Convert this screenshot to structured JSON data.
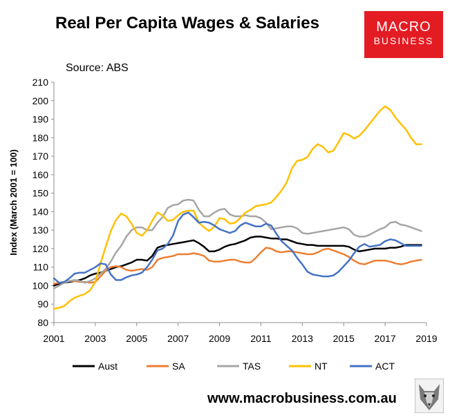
{
  "header": {
    "title": "Real Per Capita Wages & Salaries",
    "source": "Source: ABS",
    "logo_line1": "MACRO",
    "logo_line2": "BUSINESS",
    "logo_color": "#e31b23"
  },
  "footer": {
    "website": "www.macrobusiness.com.au",
    "mascot_icon": "wolf-icon"
  },
  "chart_data": {
    "type": "line",
    "title": "Real Per Capita Wages & Salaries",
    "xlabel": "",
    "ylabel": "Index (March 2001 = 100)",
    "xlim": [
      2001,
      2019
    ],
    "ylim": [
      80,
      210
    ],
    "xticks": [
      2001,
      2003,
      2005,
      2007,
      2009,
      2011,
      2013,
      2015,
      2017,
      2019
    ],
    "yticks": [
      80,
      90,
      100,
      110,
      120,
      130,
      140,
      150,
      160,
      170,
      180,
      190,
      200,
      210
    ],
    "grid": false,
    "legend_position": "bottom",
    "x": [
      2001.0,
      2001.25,
      2001.5,
      2001.75,
      2002.0,
      2002.25,
      2002.5,
      2002.75,
      2003.0,
      2003.25,
      2003.5,
      2003.75,
      2004.0,
      2004.25,
      2004.5,
      2004.75,
      2005.0,
      2005.25,
      2005.5,
      2005.75,
      2006.0,
      2006.25,
      2006.5,
      2006.75,
      2007.0,
      2007.25,
      2007.5,
      2007.75,
      2008.0,
      2008.25,
      2008.5,
      2008.75,
      2009.0,
      2009.25,
      2009.5,
      2009.75,
      2010.0,
      2010.25,
      2010.5,
      2010.75,
      2011.0,
      2011.25,
      2011.5,
      2011.75,
      2012.0,
      2012.25,
      2012.5,
      2012.75,
      2013.0,
      2013.25,
      2013.5,
      2013.75,
      2014.0,
      2014.25,
      2014.5,
      2014.75,
      2015.0,
      2015.25,
      2015.5,
      2015.75,
      2016.0,
      2016.25,
      2016.5,
      2016.75,
      2017.0,
      2017.25,
      2017.5,
      2017.75,
      2018.0,
      2018.25,
      2018.5,
      2018.75
    ],
    "series": [
      {
        "name": "Aust",
        "color": "#000000",
        "values": [
          100,
          101,
          101.5,
          102,
          102.5,
          103,
          104,
          105.5,
          106.5,
          107,
          108,
          109,
          110,
          110.5,
          111.5,
          112.5,
          114,
          114,
          113.5,
          116,
          120.5,
          121.5,
          122,
          122.5,
          123,
          123.5,
          124,
          124.5,
          123,
          121,
          118.5,
          118.5,
          119.5,
          121,
          122,
          122.5,
          123.5,
          124.5,
          126,
          126.5,
          126.5,
          126,
          125.5,
          125.5,
          125,
          125,
          124,
          123,
          122.5,
          122,
          122,
          121.5,
          121.5,
          121.5,
          121.5,
          121.5,
          121.5,
          121,
          119.5,
          118.5,
          119,
          119.5,
          120,
          120,
          120,
          120.5,
          120.5,
          121,
          122,
          122,
          122,
          122
        ]
      },
      {
        "name": "SA",
        "color": "#ed7d31",
        "values": [
          101,
          101.5,
          102,
          102.5,
          102.5,
          102,
          102,
          101.5,
          102,
          105,
          108,
          110,
          110.5,
          110,
          108.5,
          108,
          108.5,
          109,
          108.5,
          110,
          114,
          115,
          115.5,
          116,
          117,
          117,
          117,
          117.5,
          117,
          116,
          113.5,
          113,
          113,
          113.5,
          114,
          114,
          113,
          112.5,
          112.5,
          115,
          118,
          120.5,
          120,
          118.5,
          118,
          118.5,
          118.5,
          118,
          117.5,
          117,
          117,
          118,
          119.5,
          120,
          119,
          118,
          117,
          115.5,
          113.5,
          112,
          111.5,
          112.5,
          113.5,
          113.5,
          113.5,
          113,
          112,
          111.5,
          112,
          113,
          113.5,
          114
        ]
      },
      {
        "name": "TAS",
        "color": "#a5a5a5",
        "values": [
          98.5,
          100,
          101.5,
          102.5,
          103,
          102.5,
          101.5,
          102.5,
          104,
          106.5,
          109,
          113,
          118,
          121.5,
          126.5,
          130,
          131.5,
          131.5,
          130,
          130,
          134,
          137,
          142,
          143.5,
          144,
          146,
          146.5,
          146,
          141,
          137.5,
          137.5,
          139.5,
          141,
          141.5,
          138.5,
          137.5,
          137.5,
          138,
          137.5,
          137.5,
          136.5,
          134,
          130.5,
          131,
          131.5,
          132,
          132,
          131,
          128.5,
          128,
          128.5,
          129,
          129.5,
          130,
          130.5,
          131,
          131.5,
          130.5,
          127.5,
          126.5,
          126.5,
          127.5,
          129,
          130.5,
          131.5,
          134,
          134.5,
          133,
          132.5,
          131.5,
          130.5,
          129.5
        ]
      },
      {
        "name": "NT",
        "color": "#ffc000",
        "values": [
          87.5,
          88,
          89,
          91.5,
          93.5,
          94.5,
          95.5,
          97.5,
          102,
          112,
          121,
          129.5,
          135.5,
          139,
          137.5,
          133.5,
          128.5,
          127,
          130,
          135,
          139.5,
          138,
          135,
          135.5,
          138,
          140,
          140.5,
          140.5,
          134,
          131.5,
          129.5,
          132,
          136.5,
          136,
          133.5,
          134,
          136.5,
          139.5,
          141,
          143,
          143.5,
          144,
          145,
          148,
          151.5,
          156,
          163.5,
          167.5,
          168,
          169.5,
          174,
          176.5,
          175,
          172,
          173,
          177.5,
          182.5,
          181.5,
          179.5,
          181,
          184,
          187.5,
          191,
          194.5,
          197,
          195,
          191,
          187.5,
          184.5,
          180,
          176.5,
          176.5
        ]
      },
      {
        "name": "ACT",
        "color": "#4472c4",
        "values": [
          104,
          101.5,
          102,
          104,
          106.5,
          107,
          107,
          108.5,
          110,
          112,
          111.5,
          106,
          103,
          103,
          104.5,
          105.5,
          106,
          107,
          110,
          114,
          119,
          120,
          122.5,
          127,
          135,
          138.5,
          139.5,
          137,
          134,
          134.5,
          134,
          132.5,
          130.5,
          129.5,
          128.5,
          129.5,
          132.5,
          134,
          133,
          132,
          132,
          133.5,
          132.5,
          128,
          124,
          121.5,
          119,
          115,
          111.5,
          107.5,
          106,
          105.5,
          105,
          105,
          105.5,
          107.5,
          110.5,
          113.5,
          117.5,
          121,
          122.5,
          121,
          121.5,
          122,
          124,
          125,
          124.5,
          123,
          121.5,
          121.5,
          121.5,
          121.5
        ]
      }
    ]
  }
}
